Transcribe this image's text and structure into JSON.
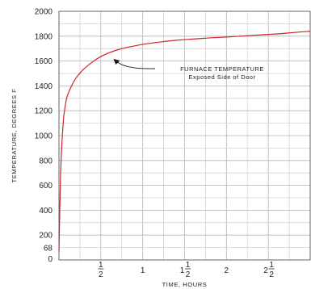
{
  "chart_data": {
    "type": "line",
    "title": "",
    "xlabel": "TIME, HOURS",
    "ylabel": "TEMPERATURE, DEGREES F",
    "xlim": [
      0,
      3
    ],
    "ylim": [
      0,
      2000
    ],
    "grid": true,
    "x_ticks": [
      {
        "value": 0.5,
        "whole": "",
        "num": "1",
        "den": "2"
      },
      {
        "value": 1,
        "whole": "1",
        "num": "",
        "den": ""
      },
      {
        "value": 1.5,
        "whole": "1",
        "num": "1",
        "den": "2"
      },
      {
        "value": 2,
        "whole": "2",
        "num": "",
        "den": ""
      },
      {
        "value": 2.5,
        "whole": "2",
        "num": "1",
        "den": "2"
      }
    ],
    "y_ticks": [
      0,
      68,
      200,
      400,
      600,
      800,
      1000,
      1200,
      1400,
      1600,
      1800,
      2000
    ],
    "series": [
      {
        "name": "",
        "color": "#d0202a",
        "x": [
          0,
          0.02,
          0.05,
          0.08,
          0.1,
          0.15,
          0.2,
          0.25,
          0.3,
          0.4,
          0.5,
          0.6,
          0.7,
          0.8,
          0.9,
          1.0,
          1.2,
          1.4,
          1.6,
          1.8,
          2.0,
          2.2,
          2.4,
          2.6,
          2.8,
          3.0
        ],
        "y": [
          68,
          700,
          1100,
          1260,
          1320,
          1400,
          1460,
          1502,
          1538,
          1593,
          1636,
          1667,
          1690,
          1708,
          1721,
          1734,
          1752,
          1767,
          1777,
          1786,
          1793,
          1801,
          1810,
          1818,
          1829,
          1840
        ]
      }
    ],
    "annotations": [
      {
        "line1": "FURNACE TEMPERATURE",
        "line2": "Exposed Side of Door",
        "x": 0.66,
        "y": 1610
      }
    ]
  }
}
